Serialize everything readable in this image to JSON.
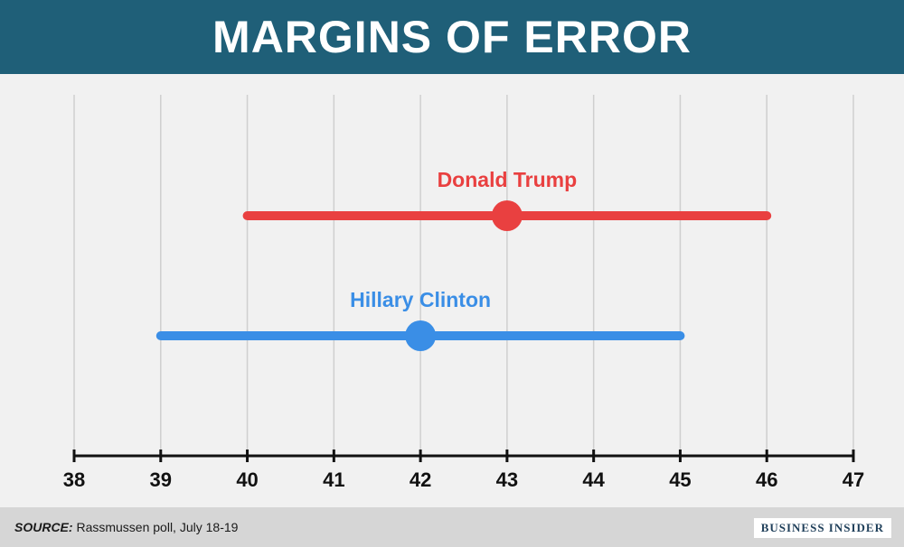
{
  "header": {
    "title": "MARGINS OF ERROR"
  },
  "chart_data": {
    "type": "errorbar",
    "title": "MARGINS OF ERROR",
    "xlim": [
      38,
      47
    ],
    "xticks": [
      38,
      39,
      40,
      41,
      42,
      43,
      44,
      45,
      46,
      47
    ],
    "grid": true,
    "series": [
      {
        "name": "Donald Trump",
        "value": 43,
        "low": 40,
        "high": 46,
        "color": "#e94040"
      },
      {
        "name": "Hillary Clinton",
        "value": 42,
        "low": 39,
        "high": 45,
        "color": "#3a8ee6"
      }
    ]
  },
  "footer": {
    "source_label": "SOURCE:",
    "source_text": "Rassmussen poll, July 18-19",
    "brand": "BUSINESS INSIDER"
  }
}
